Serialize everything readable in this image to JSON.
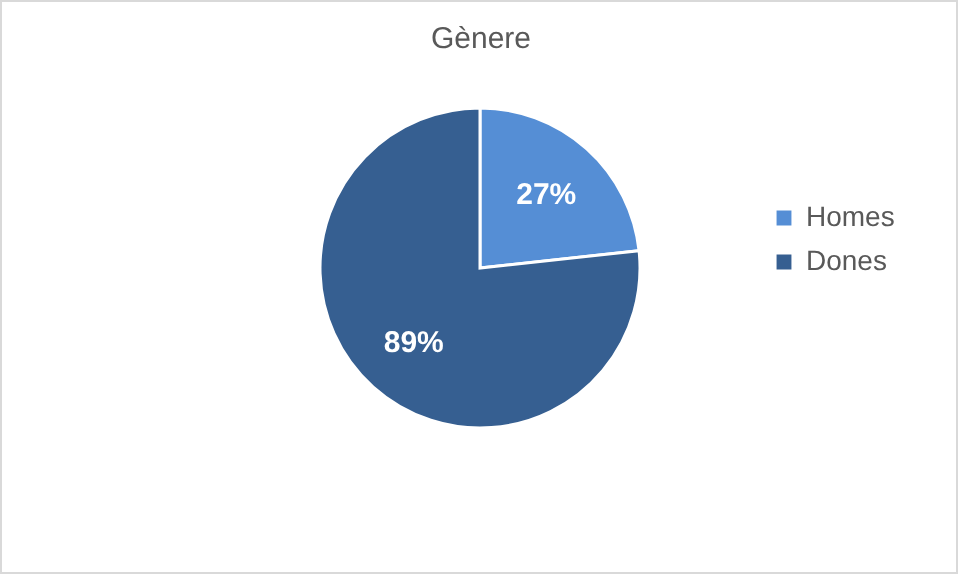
{
  "chart_data": {
    "type": "pie",
    "title": "Gènere",
    "categories": [
      "Homes",
      "Dones"
    ],
    "values": [
      27,
      89
    ],
    "colors": [
      "#558ed5",
      "#365f91"
    ],
    "value_labels": [
      "27%",
      "89%"
    ],
    "legend": "right"
  }
}
